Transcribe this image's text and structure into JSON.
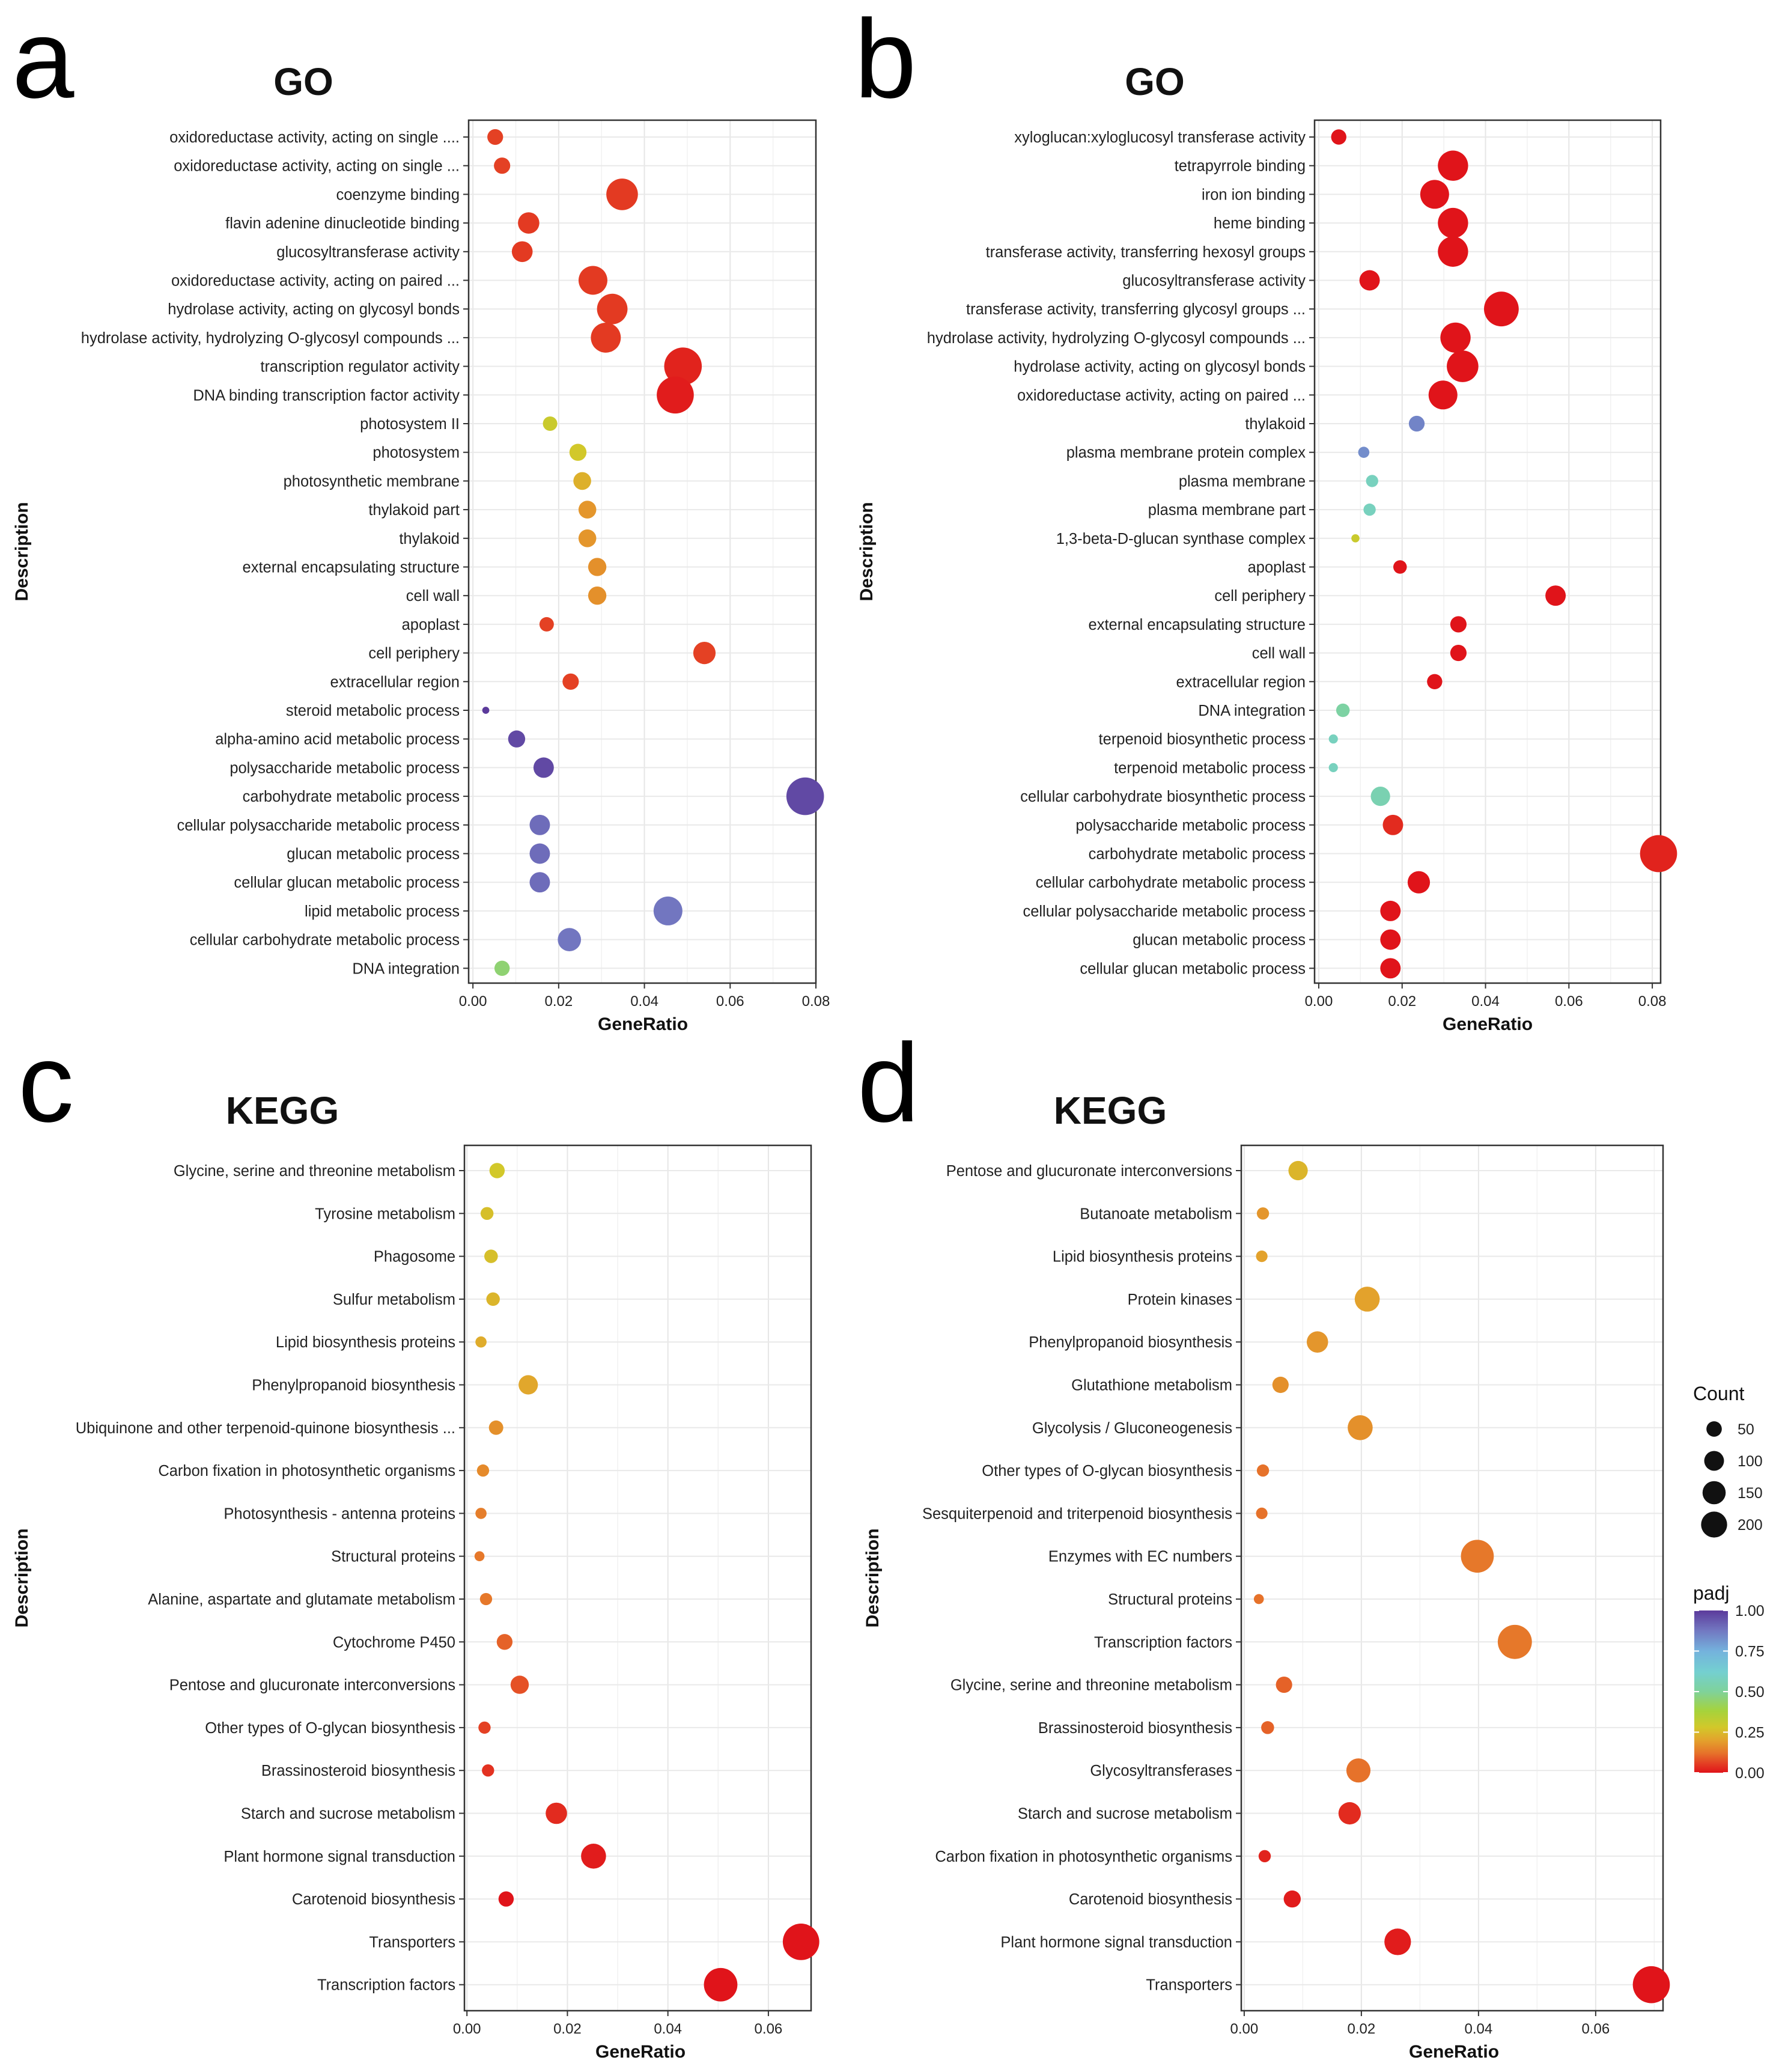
{
  "figure": {
    "legend": {
      "count_title": "Count",
      "count_sizes": [
        50,
        100,
        150,
        200
      ],
      "count_labels": [
        "50",
        "100",
        "150",
        "200"
      ],
      "padj_title": "padj",
      "padj_labels": [
        "1.00",
        "0.75",
        "0.50",
        "0.25",
        "0.00"
      ],
      "padj_ticks": [
        1.0,
        0.75,
        0.5,
        0.25,
        0.0
      ],
      "padj_colors": [
        "#5b3a9b",
        "#6b68b8",
        "#7f8fcf",
        "#7fb4d8",
        "#75c8d8",
        "#78d0b4",
        "#8dd27b",
        "#a9d23f",
        "#c8cf2c",
        "#dcc128",
        "#e3a62c",
        "#e5872c",
        "#e66a28",
        "#e44a24",
        "#e3231f",
        "#e01b1b"
      ]
    }
  },
  "chart_data": [
    {
      "panel": "a",
      "type": "scatter",
      "title": "GO",
      "xlabel": "GeneRatio",
      "ylabel": "Description",
      "xlim": [
        -0.001,
        0.08
      ],
      "xticks": [
        0.0,
        0.02,
        0.04,
        0.06,
        0.08
      ],
      "xtick_labels": [
        "0.00",
        "0.02",
        "0.04",
        "0.06",
        "0.08"
      ],
      "points": [
        {
          "label": "oxidoreductase activity, acting on single ....",
          "x": 0.0052,
          "count": 30,
          "padj": 0.06
        },
        {
          "label": "oxidoreductase activity, acting on single ...",
          "x": 0.0068,
          "count": 32,
          "padj": 0.06
        },
        {
          "label": "coenzyme binding",
          "x": 0.0348,
          "count": 120,
          "padj": 0.05
        },
        {
          "label": "flavin adenine dinucleotide binding",
          "x": 0.013,
          "count": 55,
          "padj": 0.05
        },
        {
          "label": "glucosyltransferase activity",
          "x": 0.0115,
          "count": 52,
          "padj": 0.05
        },
        {
          "label": "oxidoreductase activity, acting on paired ...",
          "x": 0.028,
          "count": 100,
          "padj": 0.05
        },
        {
          "label": "hydrolase activity, acting on glycosyl bonds",
          "x": 0.0325,
          "count": 112,
          "padj": 0.05
        },
        {
          "label": "hydrolase activity, hydrolyzing O-glycosyl compounds ...",
          "x": 0.031,
          "count": 108,
          "padj": 0.05
        },
        {
          "label": "transcription regulator activity",
          "x": 0.049,
          "count": 170,
          "padj": 0.02
        },
        {
          "label": "DNA binding transcription factor activity",
          "x": 0.0472,
          "count": 165,
          "padj": 0.01
        },
        {
          "label": "photosystem II",
          "x": 0.018,
          "count": 25,
          "padj": 0.3
        },
        {
          "label": "photosystem",
          "x": 0.0245,
          "count": 35,
          "padj": 0.28
        },
        {
          "label": "photosynthetic membrane",
          "x": 0.0255,
          "count": 38,
          "padj": 0.23
        },
        {
          "label": "thylakoid part",
          "x": 0.0267,
          "count": 38,
          "padj": 0.18
        },
        {
          "label": "thylakoid",
          "x": 0.0267,
          "count": 38,
          "padj": 0.18
        },
        {
          "label": "external encapsulating structure",
          "x": 0.029,
          "count": 40,
          "padj": 0.17
        },
        {
          "label": "cell wall",
          "x": 0.029,
          "count": 40,
          "padj": 0.17
        },
        {
          "label": "apoplast",
          "x": 0.0172,
          "count": 25,
          "padj": 0.06
        },
        {
          "label": "cell periphery",
          "x": 0.054,
          "count": 60,
          "padj": 0.06
        },
        {
          "label": "extracellular region",
          "x": 0.0228,
          "count": 32,
          "padj": 0.06
        },
        {
          "label": "steroid metabolic process",
          "x": 0.003,
          "count": 6,
          "padj": 1.0
        },
        {
          "label": "alpha-amino acid metabolic process",
          "x": 0.0102,
          "count": 35,
          "padj": 0.97
        },
        {
          "label": "polysaccharide metabolic process",
          "x": 0.0165,
          "count": 50,
          "padj": 0.97
        },
        {
          "label": "carbohydrate metabolic process",
          "x": 0.0775,
          "count": 170,
          "padj": 0.97
        },
        {
          "label": "cellular polysaccharide metabolic process",
          "x": 0.0156,
          "count": 50,
          "padj": 0.9
        },
        {
          "label": "glucan metabolic process",
          "x": 0.0156,
          "count": 50,
          "padj": 0.9
        },
        {
          "label": "cellular glucan metabolic process",
          "x": 0.0156,
          "count": 50,
          "padj": 0.9
        },
        {
          "label": "lipid metabolic process",
          "x": 0.0455,
          "count": 100,
          "padj": 0.88
        },
        {
          "label": "cellular carbohydrate metabolic process",
          "x": 0.0225,
          "count": 65,
          "padj": 0.88
        },
        {
          "label": "DNA integration",
          "x": 0.0068,
          "count": 28,
          "padj": 0.45
        }
      ]
    },
    {
      "panel": "b",
      "type": "scatter",
      "title": "GO",
      "xlabel": "GeneRatio",
      "ylabel": "Description",
      "xlim": [
        -0.001,
        0.082
      ],
      "xticks": [
        0.0,
        0.02,
        0.04,
        0.06,
        0.08
      ],
      "xtick_labels": [
        "0.00",
        "0.02",
        "0.04",
        "0.06",
        "0.08"
      ],
      "points": [
        {
          "label": "xyloglucan:xyloglucosyl transferase activity",
          "x": 0.0048,
          "count": 28,
          "padj": 0.0
        },
        {
          "label": "tetrapyrrole binding",
          "x": 0.0322,
          "count": 110,
          "padj": 0.0
        },
        {
          "label": "iron ion binding",
          "x": 0.0278,
          "count": 100,
          "padj": 0.0
        },
        {
          "label": "heme binding",
          "x": 0.0322,
          "count": 110,
          "padj": 0.0
        },
        {
          "label": "transferase activity, transferring hexosyl groups",
          "x": 0.0322,
          "count": 110,
          "padj": 0.0
        },
        {
          "label": "glucosyltransferase activity",
          "x": 0.0122,
          "count": 50,
          "padj": 0.0
        },
        {
          "label": "transferase activity, transferring glycosyl groups ...",
          "x": 0.0438,
          "count": 145,
          "padj": 0.0
        },
        {
          "label": "hydrolase activity, hydrolyzing O-glycosyl compounds ...",
          "x": 0.0328,
          "count": 110,
          "padj": 0.0
        },
        {
          "label": "hydrolase activity, acting on glycosyl bonds",
          "x": 0.0345,
          "count": 120,
          "padj": 0.0
        },
        {
          "label": "oxidoreductase activity, acting on paired ...",
          "x": 0.0298,
          "count": 100,
          "padj": 0.0
        },
        {
          "label": "thylakoid",
          "x": 0.0235,
          "count": 30,
          "padj": 0.85
        },
        {
          "label": "plasma membrane protein complex",
          "x": 0.0108,
          "count": 15,
          "padj": 0.83
        },
        {
          "label": "plasma membrane",
          "x": 0.0128,
          "count": 18,
          "padj": 0.58
        },
        {
          "label": "plasma membrane part",
          "x": 0.0122,
          "count": 18,
          "padj": 0.58
        },
        {
          "label": "1,3-beta-D-glucan synthase complex",
          "x": 0.0088,
          "count": 8,
          "padj": 0.3
        },
        {
          "label": "apoplast",
          "x": 0.0195,
          "count": 22,
          "padj": 0.0
        },
        {
          "label": "cell periphery",
          "x": 0.0568,
          "count": 50,
          "padj": 0.0
        },
        {
          "label": "external encapsulating structure",
          "x": 0.0335,
          "count": 32,
          "padj": 0.0
        },
        {
          "label": "cell wall",
          "x": 0.0335,
          "count": 32,
          "padj": 0.0
        },
        {
          "label": "extracellular region",
          "x": 0.0278,
          "count": 28,
          "padj": 0.0
        },
        {
          "label": "DNA integration",
          "x": 0.0058,
          "count": 22,
          "padj": 0.52
        },
        {
          "label": "terpenoid biosynthetic process",
          "x": 0.0035,
          "count": 10,
          "padj": 0.58
        },
        {
          "label": "terpenoid metabolic process",
          "x": 0.0035,
          "count": 10,
          "padj": 0.58
        },
        {
          "label": "cellular carbohydrate biosynthetic process",
          "x": 0.0148,
          "count": 45,
          "padj": 0.55
        },
        {
          "label": "polysaccharide metabolic process",
          "x": 0.0178,
          "count": 50,
          "padj": 0.03
        },
        {
          "label": "carbohydrate metabolic process",
          "x": 0.0815,
          "count": 165,
          "padj": 0.02
        },
        {
          "label": "cellular carbohydrate metabolic process",
          "x": 0.024,
          "count": 60,
          "padj": 0.0
        },
        {
          "label": "cellular polysaccharide metabolic process",
          "x": 0.0172,
          "count": 50,
          "padj": 0.0
        },
        {
          "label": "glucan metabolic process",
          "x": 0.0172,
          "count": 50,
          "padj": 0.0
        },
        {
          "label": "cellular glucan metabolic process",
          "x": 0.0172,
          "count": 50,
          "padj": 0.0
        }
      ]
    },
    {
      "panel": "c",
      "type": "scatter",
      "title": "KEGG",
      "xlabel": "GeneRatio",
      "ylabel": "Description",
      "xlim": [
        -0.0005,
        0.0685
      ],
      "xticks": [
        0.0,
        0.02,
        0.04,
        0.06
      ],
      "xtick_labels": [
        "0.00",
        "0.02",
        "0.04",
        "0.06"
      ],
      "points": [
        {
          "label": "Glycine, serine and threonine metabolism",
          "x": 0.006,
          "count": 28,
          "padj": 0.28
        },
        {
          "label": "Tyrosine metabolism",
          "x": 0.004,
          "count": 20,
          "padj": 0.26
        },
        {
          "label": "Phagosome",
          "x": 0.0048,
          "count": 22,
          "padj": 0.26
        },
        {
          "label": "Sulfur metabolism",
          "x": 0.0052,
          "count": 22,
          "padj": 0.24
        },
        {
          "label": "Lipid biosynthesis proteins",
          "x": 0.0028,
          "count": 15,
          "padj": 0.22
        },
        {
          "label": "Phenylpropanoid biosynthesis",
          "x": 0.0122,
          "count": 45,
          "padj": 0.21
        },
        {
          "label": "Ubiquinone and other terpenoid-quinone biosynthesis ...",
          "x": 0.0058,
          "count": 25,
          "padj": 0.17
        },
        {
          "label": "Carbon fixation in photosynthetic organisms",
          "x": 0.0032,
          "count": 18,
          "padj": 0.16
        },
        {
          "label": "Photosynthesis - antenna proteins",
          "x": 0.0028,
          "count": 15,
          "padj": 0.14
        },
        {
          "label": "Structural proteins",
          "x": 0.0025,
          "count": 12,
          "padj": 0.13
        },
        {
          "label": "Alanine, aspartate and glutamate metabolism",
          "x": 0.0038,
          "count": 18,
          "padj": 0.13
        },
        {
          "label": "Cytochrome P450",
          "x": 0.0075,
          "count": 30,
          "padj": 0.1
        },
        {
          "label": "Pentose and glucuronate interconversions",
          "x": 0.0105,
          "count": 40,
          "padj": 0.08
        },
        {
          "label": "Other types of O-glycan biosynthesis",
          "x": 0.0035,
          "count": 18,
          "padj": 0.06
        },
        {
          "label": "Brassinosteroid biosynthesis",
          "x": 0.0042,
          "count": 18,
          "padj": 0.04
        },
        {
          "label": "Starch and sucrose metabolism",
          "x": 0.0178,
          "count": 55,
          "padj": 0.03
        },
        {
          "label": "Plant hormone signal transduction",
          "x": 0.0252,
          "count": 75,
          "padj": 0.01
        },
        {
          "label": "Carotenoid biosynthesis",
          "x": 0.0078,
          "count": 28,
          "padj": 0.0
        },
        {
          "label": "Transporters",
          "x": 0.0665,
          "count": 160,
          "padj": 0.0
        },
        {
          "label": "Transcription factors",
          "x": 0.0505,
          "count": 135,
          "padj": 0.0
        }
      ]
    },
    {
      "panel": "d",
      "type": "scatter",
      "title": "KEGG",
      "xlabel": "GeneRatio",
      "ylabel": "Description",
      "xlim": [
        -0.0005,
        0.0715
      ],
      "xticks": [
        0.0,
        0.02,
        0.04,
        0.06
      ],
      "xtick_labels": [
        "0.00",
        "0.02",
        "0.04",
        "0.06"
      ],
      "points": [
        {
          "label": "Pentose and glucuronate interconversions",
          "x": 0.0092,
          "count": 45,
          "padj": 0.24
        },
        {
          "label": "Butanoate metabolism",
          "x": 0.0032,
          "count": 18,
          "padj": 0.18
        },
        {
          "label": "Lipid biosynthesis proteins",
          "x": 0.003,
          "count": 16,
          "padj": 0.2
        },
        {
          "label": "Protein kinases",
          "x": 0.021,
          "count": 75,
          "padj": 0.2
        },
        {
          "label": "Phenylpropanoid biosynthesis",
          "x": 0.0125,
          "count": 55,
          "padj": 0.18
        },
        {
          "label": "Glutathione metabolism",
          "x": 0.0062,
          "count": 32,
          "padj": 0.17
        },
        {
          "label": "Glycolysis / Gluconeogenesis",
          "x": 0.0198,
          "count": 75,
          "padj": 0.17
        },
        {
          "label": "Other types of O-glycan biosynthesis",
          "x": 0.0032,
          "count": 18,
          "padj": 0.12
        },
        {
          "label": "Sesquiterpenoid and triterpenoid biosynthesis",
          "x": 0.003,
          "count": 16,
          "padj": 0.12
        },
        {
          "label": "Enzymes with EC numbers",
          "x": 0.0398,
          "count": 130,
          "padj": 0.13
        },
        {
          "label": "Structural proteins",
          "x": 0.0025,
          "count": 12,
          "padj": 0.12
        },
        {
          "label": "Transcription factors",
          "x": 0.0462,
          "count": 140,
          "padj": 0.13
        },
        {
          "label": "Glycine, serine and threonine metabolism",
          "x": 0.0068,
          "count": 32,
          "padj": 0.1
        },
        {
          "label": "Brassinosteroid biosynthesis",
          "x": 0.004,
          "count": 20,
          "padj": 0.1
        },
        {
          "label": "Glycosyltransferases",
          "x": 0.0195,
          "count": 70,
          "padj": 0.12
        },
        {
          "label": "Starch and sucrose metabolism",
          "x": 0.018,
          "count": 60,
          "padj": 0.03
        },
        {
          "label": "Carbon fixation in photosynthetic organisms",
          "x": 0.0035,
          "count": 18,
          "padj": 0.02
        },
        {
          "label": "Carotenoid biosynthesis",
          "x": 0.0082,
          "count": 35,
          "padj": 0.01
        },
        {
          "label": "Plant hormone signal transduction",
          "x": 0.0262,
          "count": 85,
          "padj": 0.01
        },
        {
          "label": "Transporters",
          "x": 0.0695,
          "count": 165,
          "padj": 0.0
        }
      ]
    }
  ]
}
